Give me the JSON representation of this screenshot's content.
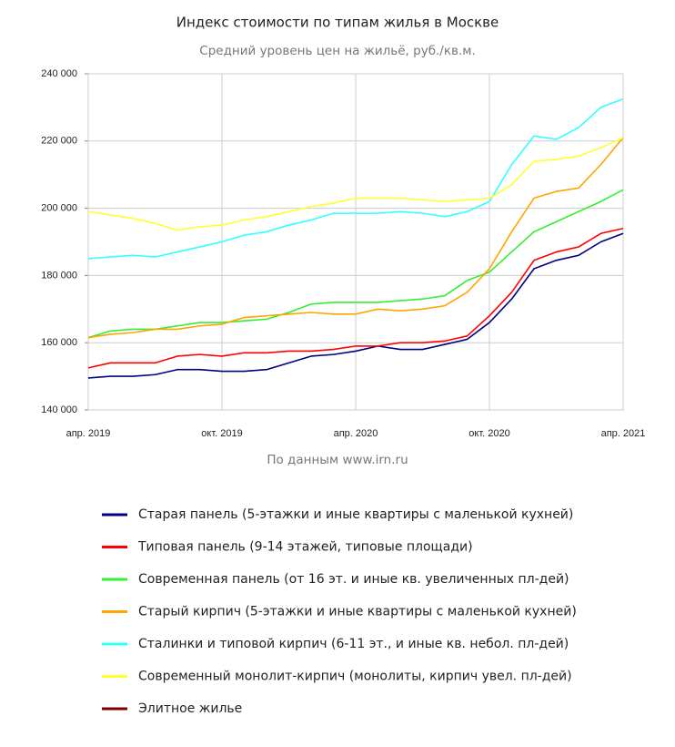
{
  "chart_data": {
    "type": "line",
    "title": "Индекс стоимости по типам жилья в Москве",
    "subtitle": "Средний уровень цен на жильё, руб./кв.м.",
    "source": "По данным www.irn.ru",
    "categories": [
      "апр. 2019",
      null,
      null,
      null,
      null,
      null,
      "окт. 2019",
      null,
      null,
      null,
      null,
      null,
      "апр. 2020",
      null,
      null,
      null,
      null,
      null,
      "окт. 2020",
      null,
      null,
      null,
      null,
      null,
      "апр. 2021"
    ],
    "ylim": [
      140000,
      240000
    ],
    "yticks": [
      {
        "value": 140000,
        "label": "140 000"
      },
      {
        "value": 160000,
        "label": "160 000"
      },
      {
        "value": 180000,
        "label": "180 000"
      },
      {
        "value": 200000,
        "label": "200 000"
      },
      {
        "value": 220000,
        "label": "220 000"
      },
      {
        "value": 240000,
        "label": "240 000"
      }
    ],
    "grid": true,
    "series": [
      {
        "name": "Старая панель (5-этажки и иные квартиры с маленькой кухней)",
        "color": "#000080",
        "values": [
          149500,
          150000,
          150000,
          150500,
          152000,
          152000,
          151500,
          151500,
          152000,
          154000,
          156000,
          156500,
          157500,
          159000,
          158000,
          158000,
          159500,
          161000,
          166000,
          173000,
          182000,
          184500,
          186000,
          190000,
          192500
        ]
      },
      {
        "name": "Типовая панель (9-14 этажей, типовые площади)",
        "color": "#ff0000",
        "values": [
          152500,
          154000,
          154000,
          154000,
          156000,
          156500,
          156000,
          157000,
          157000,
          157500,
          157500,
          158000,
          159000,
          159000,
          160000,
          160000,
          160500,
          162000,
          168000,
          175000,
          184500,
          187000,
          188500,
          192500,
          194000
        ]
      },
      {
        "name": "Современная панель (от 16 эт. и иные кв. увеличенных пл-дей)",
        "color": "#33ee33",
        "values": [
          161500,
          163500,
          164000,
          164000,
          165000,
          166000,
          166000,
          166500,
          167000,
          169000,
          171500,
          172000,
          172000,
          172000,
          172500,
          173000,
          174000,
          178500,
          181000,
          187000,
          193000,
          196000,
          199000,
          202000,
          205500
        ]
      },
      {
        "name": "Старый кирпич (5-этажки и иные квартиры с маленькой кухней)",
        "color": "#ffa500",
        "values": [
          161500,
          162500,
          163000,
          164000,
          164000,
          165000,
          165500,
          167500,
          168000,
          168500,
          169000,
          168500,
          168500,
          170000,
          169500,
          170000,
          171000,
          175000,
          182000,
          193000,
          203000,
          205000,
          206000,
          213000,
          221000
        ]
      },
      {
        "name": "Сталинки и типовой кирпич (6-11 эт., и иные кв. небол. пл-дей)",
        "color": "#33ffff",
        "values": [
          185000,
          185500,
          186000,
          185500,
          187000,
          188500,
          190000,
          192000,
          193000,
          195000,
          196500,
          198500,
          198500,
          198500,
          199000,
          198500,
          197500,
          199000,
          202000,
          213000,
          221500,
          220500,
          224000,
          230000,
          232500
        ]
      },
      {
        "name": "Современный монолит-кирпич (монолиты, кирпич увел. пл-дей)",
        "color": "#ffff33",
        "values": [
          199000,
          198000,
          197000,
          195500,
          193500,
          194500,
          195000,
          196500,
          197500,
          199000,
          200500,
          201500,
          203000,
          203000,
          203000,
          202500,
          202000,
          202500,
          203000,
          207000,
          214000,
          214500,
          215500,
          218000,
          221000
        ]
      },
      {
        "name": "Элитное жилье",
        "color": "#800000",
        "values": [
          null,
          null,
          null,
          null,
          null,
          null,
          null,
          null,
          null,
          null,
          null,
          null,
          null,
          null,
          null,
          null,
          null,
          null,
          null,
          null,
          null,
          null,
          null,
          null,
          null
        ]
      }
    ]
  }
}
